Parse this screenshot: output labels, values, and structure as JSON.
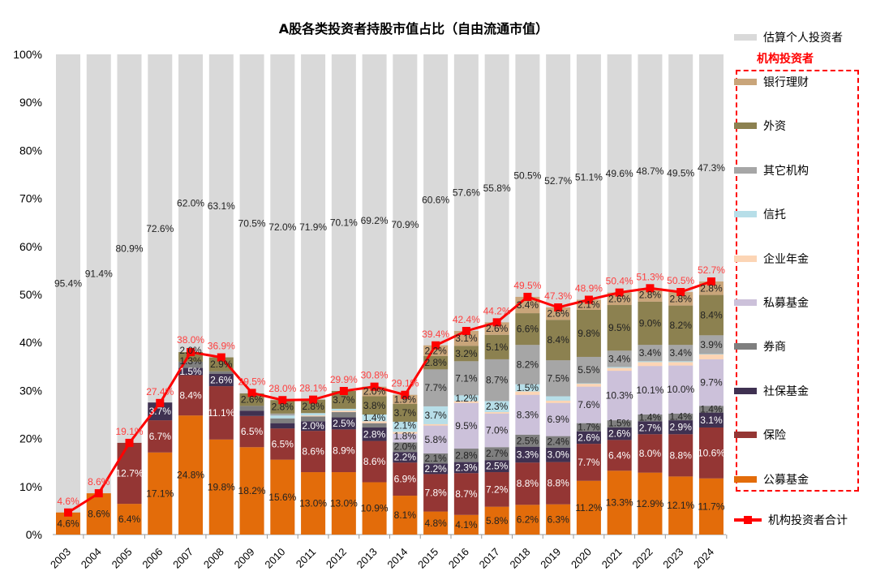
{
  "chart_data": {
    "type": "bar",
    "stacked": true,
    "title": "A股各类投资者持股市值占比（自由流通市值）",
    "ylim": [
      0,
      100
    ],
    "yticks": [
      "0%",
      "10%",
      "20%",
      "30%",
      "40%",
      "50%",
      "60%",
      "70%",
      "80%",
      "90%",
      "100%"
    ],
    "grid": false,
    "legend_position": "right",
    "categories": [
      "2003",
      "2004",
      "2005",
      "2006",
      "2007",
      "2008",
      "2009",
      "2010",
      "2011",
      "2012",
      "2013",
      "2014",
      "2015",
      "2016",
      "2017",
      "2018",
      "2019",
      "2020",
      "2021",
      "2022",
      "2023",
      "2024"
    ],
    "series": [
      {
        "name": "公募基金",
        "color": "#e36c0a",
        "label_color": "#222",
        "values": [
          4.6,
          8.6,
          6.4,
          17.1,
          24.8,
          19.8,
          18.2,
          15.6,
          13.0,
          13.0,
          10.9,
          8.1,
          4.8,
          4.1,
          5.8,
          6.2,
          6.3,
          11.2,
          13.3,
          12.9,
          12.1,
          11.7
        ]
      },
      {
        "name": "保险",
        "color": "#943634",
        "label_color": "#fff",
        "values": [
          0,
          0,
          12.7,
          6.7,
          8.4,
          11.1,
          6.5,
          6.5,
          8.6,
          8.9,
          8.6,
          6.9,
          7.8,
          8.7,
          7.2,
          8.8,
          8.8,
          7.7,
          6.4,
          8.0,
          8.8,
          10.6
        ]
      },
      {
        "name": "社保基金",
        "color": "#3f3151",
        "label_color": "#fff",
        "values": [
          0,
          0,
          0,
          3.7,
          1.5,
          2.6,
          1.1,
          1.1,
          2.0,
          2.5,
          2.8,
          2.2,
          2.2,
          2.3,
          2.5,
          3.3,
          3.0,
          2.6,
          2.6,
          2.7,
          2.9,
          3.1
        ]
      },
      {
        "name": "券商",
        "color": "#7f7f7f",
        "label_color": "#222",
        "values": [
          0,
          0,
          0,
          0,
          1.3,
          0.5,
          1.0,
          1.0,
          1.0,
          1.1,
          0.9,
          2.0,
          2.1,
          2.8,
          2.7,
          2.5,
          2.4,
          1.7,
          1.5,
          1.4,
          1.4,
          1.4
        ]
      },
      {
        "name": "私募基金",
        "color": "#ccc1da",
        "label_color": "#222",
        "values": [
          0,
          0,
          0,
          0,
          0,
          0,
          0,
          0,
          0,
          0,
          0,
          1.8,
          5.8,
          9.5,
          7.0,
          8.3,
          6.9,
          7.6,
          10.3,
          10.1,
          10.0,
          9.7
        ]
      },
      {
        "name": "企业年金",
        "color": "#fcd5b5",
        "label_color": "#222",
        "values": [
          0,
          0,
          0,
          0,
          0,
          0,
          0,
          0,
          0.2,
          0.3,
          0.4,
          0.4,
          0.3,
          0.4,
          0.3,
          0.7,
          0.5,
          0.6,
          0.6,
          0.8,
          0.7,
          1.0
        ]
      },
      {
        "name": "信托",
        "color": "#b7dee8",
        "label_color": "#222",
        "values": [
          0,
          0,
          0,
          0,
          0,
          0,
          0,
          0.6,
          0.5,
          0.4,
          1.4,
          2.1,
          3.7,
          1.2,
          2.3,
          1.5,
          0.9,
          0.1,
          0.2,
          0.2,
          0.2,
          0.1
        ]
      },
      {
        "name": "其它机构",
        "color": "#a6a6a6",
        "label_color": "#222",
        "values": [
          0,
          0,
          0,
          0,
          0,
          0,
          0,
          0.4,
          0,
          0,
          0,
          0,
          7.7,
          7.1,
          8.7,
          8.2,
          7.5,
          5.5,
          3.4,
          3.4,
          3.4,
          3.9
        ]
      },
      {
        "name": "外资",
        "color": "#8c8150",
        "label_color": "#222",
        "values": [
          0,
          0,
          0,
          0,
          2.0,
          2.9,
          2.6,
          2.8,
          2.8,
          3.7,
          3.8,
          3.7,
          2.8,
          3.2,
          5.1,
          6.6,
          8.4,
          9.8,
          9.5,
          9.0,
          8.2,
          8.4
        ]
      },
      {
        "name": "银行理财",
        "color": "#c9a57a",
        "label_color": "#222",
        "values": [
          0,
          0,
          0,
          0,
          0,
          0,
          0,
          0,
          0,
          0,
          2.0,
          1.9,
          2.2,
          3.1,
          2.6,
          3.4,
          2.6,
          2.1,
          2.6,
          2.8,
          2.8,
          2.8
        ]
      }
    ],
    "individual": {
      "name": "估算个人投资者",
      "color": "#d9d9d9",
      "values": [
        95.4,
        91.4,
        80.9,
        72.6,
        62.0,
        63.1,
        70.5,
        72.0,
        71.9,
        70.1,
        69.2,
        70.9,
        60.6,
        57.6,
        55.8,
        50.5,
        52.7,
        51.1,
        49.6,
        48.7,
        49.5,
        47.3
      ]
    },
    "total_line": {
      "name": "机构投资者合计",
      "color": "#ff0000",
      "values": [
        4.6,
        8.6,
        19.1,
        27.4,
        38.0,
        36.9,
        29.5,
        28.0,
        28.1,
        29.9,
        30.8,
        29.1,
        39.4,
        42.4,
        44.2,
        49.5,
        47.3,
        48.9,
        50.4,
        51.3,
        50.5,
        52.7
      ]
    },
    "legend_group_label": "机构投资者"
  }
}
